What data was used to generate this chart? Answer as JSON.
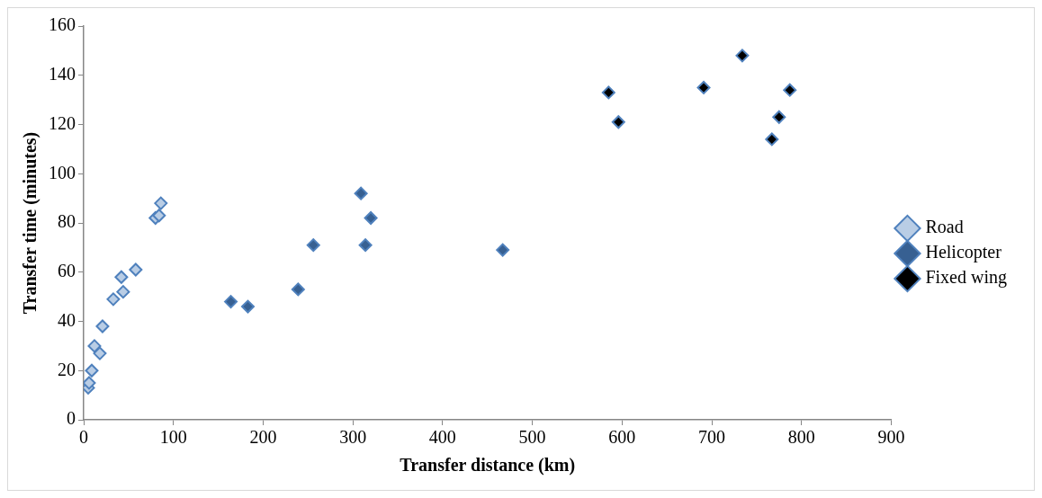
{
  "chart_data": {
    "type": "scatter",
    "xlabel": "Transfer distance (km)",
    "ylabel": "Transfer time (minutes)",
    "xlim": [
      0,
      900
    ],
    "xticks": [
      0,
      100,
      200,
      300,
      400,
      500,
      600,
      700,
      800,
      900
    ],
    "ylim": [
      0,
      160
    ],
    "yticks": [
      0,
      20,
      40,
      60,
      80,
      100,
      120,
      140,
      160
    ],
    "grid": false,
    "legend": "right",
    "marker": "diamond",
    "series": [
      {
        "name": "Road",
        "color": "#b9cde5",
        "x": [
          5,
          6,
          9,
          12,
          18,
          21,
          33,
          42,
          44,
          58,
          80,
          84,
          86
        ],
        "values": [
          13,
          15,
          20,
          30,
          27,
          38,
          49,
          58,
          52,
          61,
          82,
          83,
          88
        ]
      },
      {
        "name": "Helicopter",
        "color": "#376092",
        "x": [
          164,
          183,
          239,
          256,
          309,
          314,
          320,
          467
        ],
        "values": [
          48,
          46,
          53,
          71,
          92,
          71,
          82,
          69
        ]
      },
      {
        "name": "Fixed wing",
        "color": "#000000",
        "x": [
          585,
          596,
          691,
          734,
          787,
          775,
          767
        ],
        "values": [
          133,
          121,
          135,
          148,
          134,
          123,
          114
        ]
      }
    ]
  }
}
